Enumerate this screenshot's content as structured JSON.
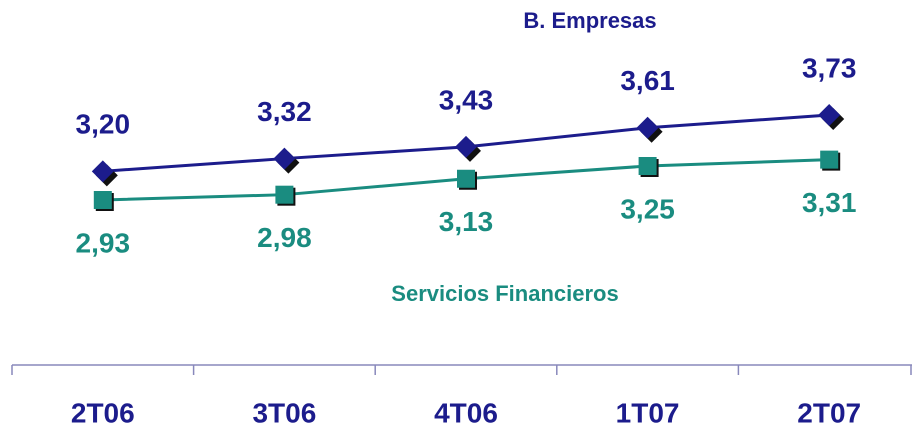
{
  "chart_data": {
    "type": "line",
    "categories": [
      "2T06",
      "3T06",
      "4T06",
      "1T07",
      "2T07"
    ],
    "series": [
      {
        "name": "B. Empresas",
        "color": "#1c1c8c",
        "marker": "diamond",
        "values": [
          3.2,
          3.32,
          3.43,
          3.61,
          3.73
        ],
        "value_labels": [
          "3,20",
          "3,32",
          "3,43",
          "3,61",
          "3,73"
        ]
      },
      {
        "name": "Servicios Financieros",
        "color": "#1a8c80",
        "marker": "square",
        "values": [
          2.93,
          2.98,
          3.13,
          3.25,
          3.31
        ],
        "value_labels": [
          "2,93",
          "2,98",
          "3,13",
          "3,25",
          "3,31"
        ]
      }
    ]
  }
}
